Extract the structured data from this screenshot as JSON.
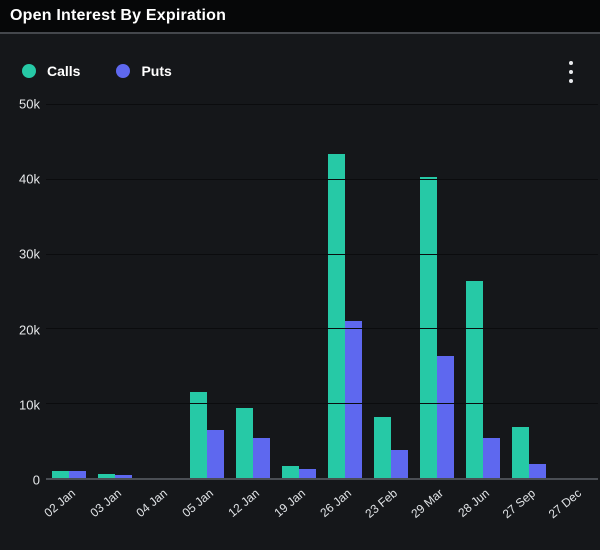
{
  "header": {
    "title": "Open Interest By Expiration"
  },
  "legend": {
    "items": [
      {
        "label": "Calls",
        "color": "#26C9A6"
      },
      {
        "label": "Puts",
        "color": "#5E68EF"
      }
    ]
  },
  "menu": {
    "kebab_icon": "more-options"
  },
  "colors": {
    "background": "#15171A",
    "header_background": "#060708",
    "gridline": "#0B0C0E",
    "axis_line": "#4A4E54",
    "tick_text": "#E6E8EA"
  },
  "chart_data": {
    "type": "bar",
    "title": "Open Interest By Expiration",
    "xlabel": "",
    "ylabel": "",
    "ylim": [
      0,
      50000
    ],
    "grid": true,
    "legend_position": "top-left",
    "categories": [
      "02 Jan",
      "03 Jan",
      "04 Jan",
      "05 Jan",
      "12 Jan",
      "19 Jan",
      "26 Jan",
      "23 Feb",
      "29 Mar",
      "28 Jun",
      "27 Sep",
      "27 Dec"
    ],
    "series": [
      {
        "name": "Calls",
        "color": "#26C9A6",
        "values": [
          1000,
          500,
          0,
          11500,
          9300,
          1600,
          43300,
          8200,
          40200,
          26300,
          6800,
          0
        ]
      },
      {
        "name": "Puts",
        "color": "#5E68EF",
        "values": [
          900,
          450,
          0,
          6400,
          5300,
          1200,
          21000,
          3700,
          16300,
          5300,
          1900,
          0
        ]
      }
    ],
    "yticks": [
      {
        "value": 0,
        "label": "0"
      },
      {
        "value": 10000,
        "label": "10k"
      },
      {
        "value": 20000,
        "label": "20k"
      },
      {
        "value": 30000,
        "label": "30k"
      },
      {
        "value": 40000,
        "label": "40k"
      },
      {
        "value": 50000,
        "label": "50k"
      }
    ]
  }
}
